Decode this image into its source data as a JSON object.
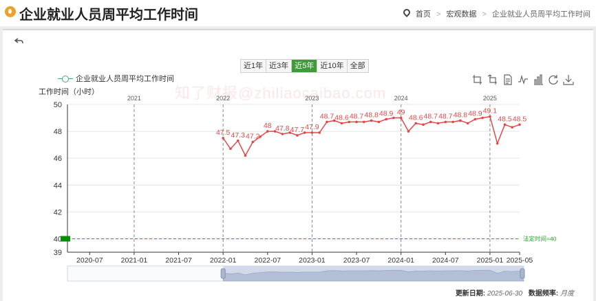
{
  "header": {
    "title": "企业就业人员周平均工作时间",
    "breadcrumb": [
      "首页",
      "宏观数据",
      "企业就业人员周平均工作时间"
    ]
  },
  "range_tabs": [
    "近1年",
    "近3年",
    "近5年",
    "近10年",
    "全部"
  ],
  "active_range": "近5年",
  "watermark": "知了财报@zhiliaocaibao.com",
  "footer": {
    "updated_label": "更新日期:",
    "updated_value": "2025-06-30",
    "frequency_label": "数据频率:",
    "frequency_value": "月度"
  },
  "toolbox_icons": [
    "zoom-icon",
    "zoom-reset-icon",
    "data-view-icon",
    "line-chart-icon",
    "bar-chart-icon",
    "restore-icon",
    "download-icon"
  ],
  "colors": {
    "series": "#e04848",
    "legend": "#4aa37a",
    "reference": "#2aa02a",
    "active_tab": "#3e9a3a"
  },
  "chart_data": {
    "type": "line",
    "ylabel": "工作时间（小时）",
    "ylim": [
      39,
      50
    ],
    "yticks": [
      39,
      40,
      42,
      44,
      46,
      48,
      50
    ],
    "x_range": [
      "2020-04",
      "2025-05"
    ],
    "x_ticks": [
      "2020-07",
      "2021-01",
      "2021-07",
      "2022-01",
      "2022-07",
      "2023-01",
      "2023-07",
      "2024-01",
      "2024-07",
      "2025-01",
      "2025-05"
    ],
    "year_markers": [
      "2021",
      "2022",
      "2023",
      "2024",
      "2025"
    ],
    "reference_line": {
      "value": 40,
      "label": "法定时间=40"
    },
    "series": [
      {
        "name": "企业就业人员周平均工作时间",
        "points": [
          [
            "2022-01",
            47.5
          ],
          [
            "2022-02",
            46.7
          ],
          [
            "2022-03",
            47.3
          ],
          [
            "2022-04",
            46.2
          ],
          [
            "2022-05",
            47.2
          ],
          [
            "2022-06",
            47.6
          ],
          [
            "2022-07",
            48.0
          ],
          [
            "2022-08",
            48.0
          ],
          [
            "2022-09",
            47.8
          ],
          [
            "2022-10",
            47.9
          ],
          [
            "2022-11",
            47.7
          ],
          [
            "2022-12",
            47.9
          ],
          [
            "2023-01",
            47.9
          ],
          [
            "2023-02",
            47.9
          ],
          [
            "2023-03",
            48.7
          ],
          [
            "2023-04",
            48.8
          ],
          [
            "2023-05",
            48.6
          ],
          [
            "2023-06",
            48.7
          ],
          [
            "2023-07",
            48.7
          ],
          [
            "2023-08",
            48.7
          ],
          [
            "2023-09",
            48.8
          ],
          [
            "2023-10",
            48.7
          ],
          [
            "2023-11",
            48.9
          ],
          [
            "2023-12",
            49.0
          ],
          [
            "2024-01",
            49.0
          ],
          [
            "2024-02",
            48.0
          ],
          [
            "2024-03",
            48.6
          ],
          [
            "2024-04",
            48.5
          ],
          [
            "2024-05",
            48.7
          ],
          [
            "2024-06",
            48.6
          ],
          [
            "2024-07",
            48.7
          ],
          [
            "2024-08",
            48.7
          ],
          [
            "2024-09",
            48.8
          ],
          [
            "2024-10",
            48.6
          ],
          [
            "2024-11",
            48.9
          ],
          [
            "2024-12",
            49.0
          ],
          [
            "2025-01",
            49.1
          ],
          [
            "2025-02",
            47.1
          ],
          [
            "2025-03",
            48.5
          ],
          [
            "2025-04",
            48.3
          ],
          [
            "2025-05",
            48.5
          ]
        ],
        "labels": [
          [
            "2022-01",
            "47.5"
          ],
          [
            "2022-03",
            "47.3"
          ],
          [
            "2022-05",
            "47.2"
          ],
          [
            "2022-07",
            "48"
          ],
          [
            "2022-09",
            "47.8"
          ],
          [
            "2022-11",
            "47.7"
          ],
          [
            "2023-01",
            "47.9"
          ],
          [
            "2023-03",
            "48.7"
          ],
          [
            "2023-05",
            "48.6"
          ],
          [
            "2023-07",
            "48.7"
          ],
          [
            "2023-09",
            "48.8"
          ],
          [
            "2023-11",
            "48.9"
          ],
          [
            "2024-01",
            "49"
          ],
          [
            "2024-03",
            "48.6"
          ],
          [
            "2024-05",
            "48.7"
          ],
          [
            "2024-07",
            "48.7"
          ],
          [
            "2024-09",
            "48.8"
          ],
          [
            "2024-11",
            "48.9"
          ],
          [
            "2025-01",
            "49.1"
          ],
          [
            "2025-03",
            "48.5"
          ],
          [
            "2025-05",
            "48.5"
          ]
        ]
      }
    ],
    "grid": true
  }
}
